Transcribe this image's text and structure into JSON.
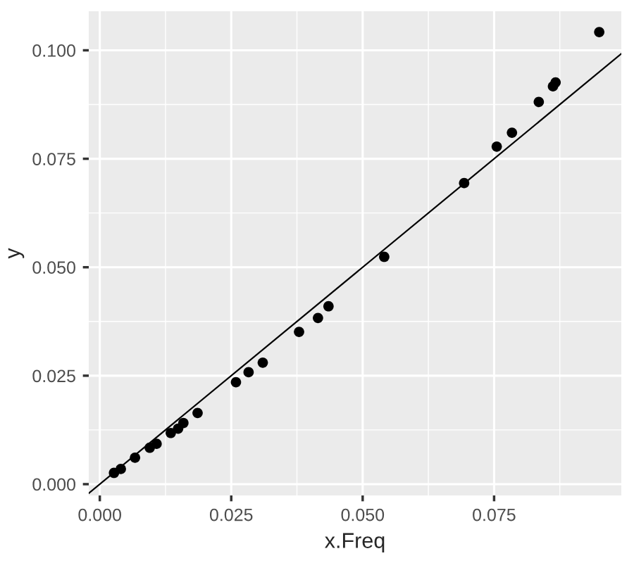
{
  "chart_data": {
    "type": "scatter",
    "xlabel": "x.Freq",
    "ylabel": "y",
    "xlim": [
      -0.0021,
      0.0992
    ],
    "ylim": [
      -0.0026,
      0.109
    ],
    "xticks": [
      {
        "value": 0,
        "label": "0.000"
      },
      {
        "value": 0.025,
        "label": "0.025"
      },
      {
        "value": 0.05,
        "label": "0.050"
      },
      {
        "value": 0.075,
        "label": "0.075"
      }
    ],
    "yticks": [
      {
        "value": 0,
        "label": "0.000"
      },
      {
        "value": 0.025,
        "label": "0.025"
      },
      {
        "value": 0.05,
        "label": "0.050"
      },
      {
        "value": 0.075,
        "label": "0.075"
      },
      {
        "value": 0.1,
        "label": "0.100"
      }
    ],
    "grid": true,
    "marker": "circle",
    "series": [
      {
        "color": "#000000",
        "x": [
          0.0027,
          0.004,
          0.0067,
          0.0095,
          0.0108,
          0.0135,
          0.0149,
          0.0159,
          0.0186,
          0.0259,
          0.0283,
          0.031,
          0.0379,
          0.0415,
          0.0435,
          0.0541,
          0.0693,
          0.0755,
          0.0784,
          0.0835,
          0.0862,
          0.0867,
          0.095
        ],
        "values": [
          0.0026,
          0.0035,
          0.0061,
          0.0084,
          0.0093,
          0.0118,
          0.0128,
          0.0141,
          0.0164,
          0.0235,
          0.0258,
          0.028,
          0.0351,
          0.0383,
          0.041,
          0.0524,
          0.0694,
          0.0778,
          0.081,
          0.0881,
          0.0917,
          0.0926,
          0.1042
        ]
      },
      {
        "type": "line",
        "color": "#000000",
        "marker": "none",
        "line_style": "solid",
        "x": [
          -0.0021,
          0.0992
        ],
        "values": [
          -0.0021,
          0.0992
        ]
      }
    ]
  }
}
